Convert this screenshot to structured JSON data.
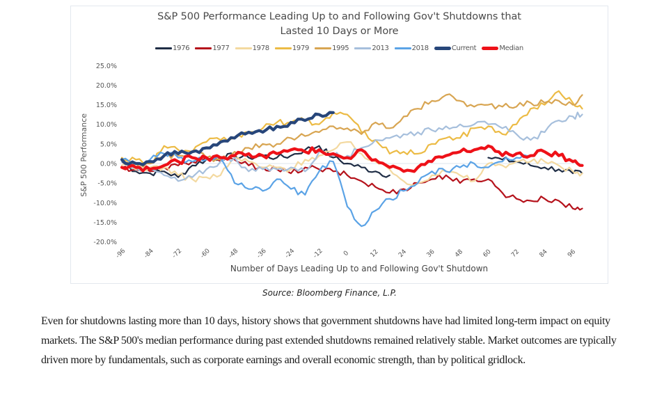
{
  "chart_data": {
    "type": "line",
    "title": "S&P 500 Performance Leading Up to and Following Gov't Shutdowns that Lasted 10 Days or More",
    "title_lines": [
      "S&P 500 Performance Leading Up to and Following Gov't Shutdowns that",
      "Lasted 10 Days or More"
    ],
    "xlabel": "Number of Days Leading Up to and Following Gov't Shutdown",
    "ylabel": "S&P 500 Performance",
    "xlim": [
      -96,
      100
    ],
    "ylim": [
      -20,
      25
    ],
    "x_ticks": [
      -96,
      -84,
      -72,
      -60,
      -48,
      -36,
      -24,
      -12,
      0,
      12,
      24,
      36,
      48,
      60,
      72,
      84,
      96
    ],
    "x_tick_labels": [
      "-96",
      "-84",
      "-72",
      "-60",
      "-48",
      "-36",
      "-24",
      "-12",
      "0",
      "12",
      "24",
      "36",
      "48",
      "60",
      "72",
      "84",
      "96"
    ],
    "y_ticks": [
      25,
      20,
      15,
      10,
      5,
      0,
      -5,
      -10,
      -15,
      -20
    ],
    "y_tick_labels": [
      "25.0%",
      "20.0%",
      "15.0%",
      "10.0%",
      "5.0%",
      "0.0%",
      "-5.0%",
      "-10.0%",
      "-15.0%",
      "-20.0%"
    ],
    "grid": false,
    "zero_line": true,
    "legend_position": "top-center",
    "x": [
      -96,
      -90,
      -84,
      -78,
      -72,
      -66,
      -60,
      -54,
      -48,
      -42,
      -36,
      -30,
      -24,
      -18,
      -12,
      -6,
      0,
      6,
      12,
      18,
      24,
      30,
      36,
      42,
      48,
      54,
      60,
      66,
      72,
      78,
      84,
      90,
      96,
      100
    ],
    "series": [
      {
        "name": "1976",
        "color": "#1f2d45",
        "thick": false,
        "values": [
          0.5,
          -2.0,
          -2.5,
          -2.0,
          -3.5,
          -0.5,
          1.0,
          1.5,
          2.0,
          1.5,
          2.0,
          1.5,
          2.0,
          3.5,
          4.5,
          1.5,
          0.0,
          -1.0,
          -2.0,
          -3.0,
          null,
          null,
          null,
          null,
          null,
          null,
          1.5,
          1.0,
          0.5,
          -0.5,
          -1.0,
          -1.5,
          -2.5,
          -2.5
        ]
      },
      {
        "name": "1977",
        "color": "#b5121b",
        "thick": false,
        "values": [
          -1.0,
          -1.5,
          -2.0,
          -1.0,
          -0.5,
          0.5,
          1.5,
          0.5,
          1.0,
          -0.5,
          -1.0,
          -1.5,
          -2.5,
          -1.0,
          -1.5,
          -2.0,
          -3.0,
          -4.5,
          -6.0,
          -7.5,
          -6.5,
          -5.0,
          -4.0,
          -3.0,
          -5.0,
          -4.0,
          -4.0,
          -7.5,
          -9.0,
          -9.5,
          -9.0,
          -9.5,
          -11.5,
          -11.5
        ]
      },
      {
        "name": "1978",
        "color": "#f3d9a0",
        "thick": false,
        "values": [
          -0.5,
          -1.5,
          -1.0,
          -1.0,
          -3.0,
          -4.0,
          -3.5,
          -3.0,
          1.5,
          0.5,
          -1.0,
          -1.0,
          -1.5,
          1.0,
          2.0,
          3.5,
          5.5,
          2.5,
          0.5,
          -1.5,
          -4.5,
          -5.0,
          -3.0,
          -2.0,
          -3.0,
          -4.5,
          0.0,
          -0.5,
          0.5,
          0.5,
          0.5,
          -0.5,
          -2.0,
          -2.5
        ]
      },
      {
        "name": "1979",
        "color": "#ecbb45",
        "thick": false,
        "values": [
          1.5,
          1.0,
          0.0,
          4.5,
          3.5,
          3.0,
          5.5,
          6.0,
          6.5,
          8.0,
          9.0,
          10.5,
          10.5,
          11.0,
          10.0,
          13.0,
          12.5,
          8.0,
          6.0,
          2.5,
          3.0,
          2.5,
          5.0,
          6.5,
          6.5,
          9.0,
          9.5,
          7.5,
          10.0,
          14.0,
          15.0,
          18.5,
          15.5,
          14.0
        ]
      },
      {
        "name": "1995",
        "color": "#d8a552",
        "thick": false,
        "values": [
          1.0,
          -1.0,
          0.0,
          2.0,
          2.0,
          3.0,
          1.5,
          1.0,
          3.0,
          4.0,
          5.0,
          5.0,
          6.5,
          7.0,
          8.0,
          9.5,
          9.0,
          7.5,
          10.5,
          9.0,
          12.0,
          14.0,
          16.0,
          17.5,
          16.0,
          14.5,
          15.0,
          14.5,
          14.5,
          15.5,
          15.5,
          16.0,
          15.0,
          17.5
        ]
      },
      {
        "name": "2013",
        "color": "#a6bfdc",
        "thick": false,
        "values": [
          0.5,
          -1.0,
          -1.5,
          -3.0,
          -4.5,
          -3.5,
          -1.5,
          0.5,
          1.5,
          -2.0,
          -1.5,
          -1.5,
          -1.0,
          -2.0,
          3.0,
          2.0,
          2.0,
          4.0,
          6.0,
          6.5,
          7.5,
          8.0,
          8.5,
          9.5,
          10.0,
          10.0,
          10.0,
          9.0,
          7.5,
          6.0,
          8.0,
          11.0,
          12.0,
          12.5
        ]
      },
      {
        "name": "2018",
        "color": "#5ba3e6",
        "thick": false,
        "values": [
          1.0,
          0.0,
          1.0,
          2.5,
          1.5,
          0.5,
          1.0,
          1.5,
          -5.0,
          -6.5,
          -7.0,
          -4.0,
          -6.5,
          -8.0,
          -2.0,
          0.5,
          -11.0,
          -16.0,
          -12.0,
          -9.0,
          -7.0,
          -5.0,
          -2.0,
          -2.0,
          -1.0,
          0.0,
          -1.0,
          0.5,
          1.5,
          2.0,
          null,
          -1.5,
          null,
          null
        ]
      },
      {
        "name": "Current",
        "color": "#27467a",
        "thick": true,
        "values": [
          1.0,
          0.0,
          0.5,
          2.0,
          2.5,
          3.0,
          4.0,
          5.5,
          6.5,
          8.0,
          8.0,
          9.5,
          10.5,
          11.0,
          12.5,
          13.0,
          null,
          null,
          null,
          null,
          null,
          null,
          null,
          null,
          null,
          null,
          null,
          null,
          null,
          null,
          null,
          null,
          null,
          null
        ]
      },
      {
        "name": "Median",
        "color": "#ee1118",
        "thick": true,
        "values": [
          -1.0,
          -1.0,
          -1.5,
          -0.5,
          0.5,
          1.5,
          1.5,
          1.5,
          2.0,
          2.5,
          2.0,
          2.5,
          3.5,
          3.0,
          3.5,
          2.5,
          1.5,
          3.5,
          1.0,
          -1.0,
          -2.0,
          -1.0,
          0.5,
          2.0,
          3.0,
          3.5,
          4.5,
          2.0,
          2.5,
          2.0,
          3.0,
          2.0,
          0.5,
          -0.5
        ]
      }
    ]
  },
  "source_text": "Source: Bloomberg Finance, L.P.",
  "body_text": "Even for shutdowns lasting more than 10 days, history shows that government shutdowns have had limited long-term impact on equity markets. The S&P 500's median performance during past extended shutdowns remained relatively stable. Market outcomes are typically driven more by fundamentals, such as corporate earnings and overall economic strength, than by political gridlock."
}
